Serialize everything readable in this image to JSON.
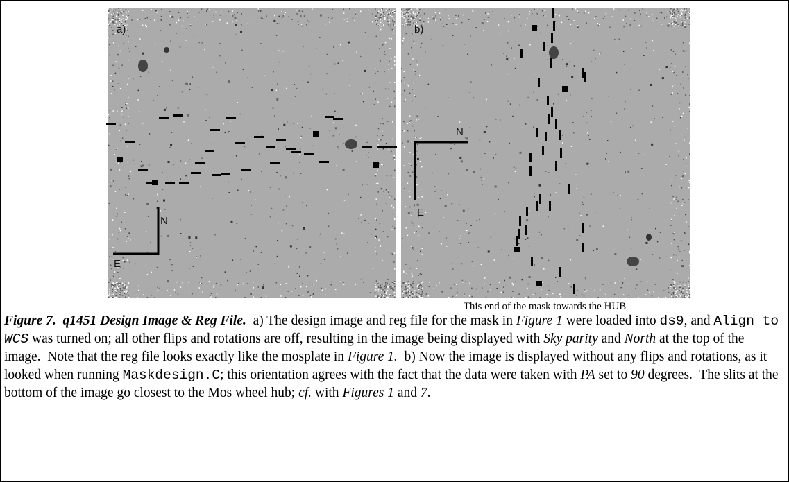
{
  "panels": [
    {
      "label": "a)",
      "north": "N",
      "east": "E"
    },
    {
      "label": "b)",
      "north": "N",
      "east": "E"
    }
  ],
  "hub_note": "This end of the mask towards the HUB",
  "caption": [
    "Figure 7.  q1451 Design Image & Reg File.",
    "  a) The design image and reg file for the mask in ",
    "Figure 1",
    " were loaded into ",
    "ds9",
    ", and ",
    "Align to ",
    "WCS",
    " was turned on; all other flips and rotations are off, resulting in the image being displayed with ",
    "Sky parity",
    " and ",
    "North",
    " at the top of the image.  Note that the reg file looks exactly like the mosplate in ",
    "Figure 1.",
    "  b) Now the image is displayed without any flips and rotations, as it looked when running ",
    "Maskdesign.C",
    "; this orientation agrees with the fact that the data were taken with ",
    "PA",
    " set to ",
    "90",
    " degrees.  The slits at the bottom of the image go closest to the Mos wheel hub; ",
    "cf.",
    " with ",
    "Figures 1",
    " and ",
    "7",
    "."
  ]
}
